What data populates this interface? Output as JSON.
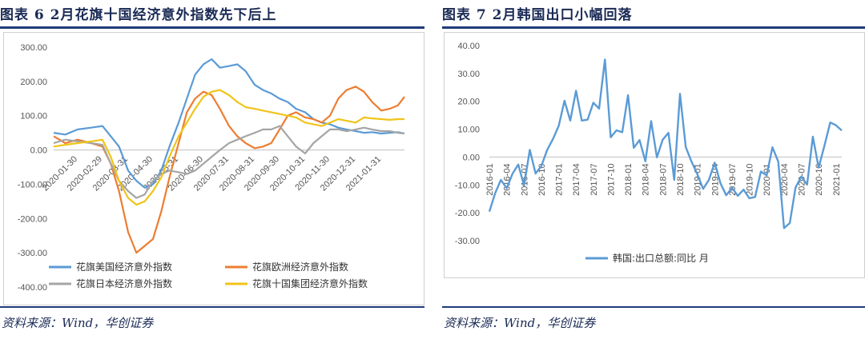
{
  "left": {
    "title": "图表 6   2月花旗十国经济意外指数先下后上",
    "source": "资料来源：Wind，华创证券",
    "chart_data": {
      "type": "line",
      "ylim": [
        -400,
        300
      ],
      "yticks": [
        300,
        200,
        100,
        0,
        -100,
        -200,
        -300,
        -400
      ],
      "ytick_labels": [
        "300.00",
        "200.00",
        "100.00",
        "0.00",
        "-100.00",
        "-200.00",
        "-300.00",
        "-400.00"
      ],
      "xlim": [
        "2020-01-01",
        "2021-02-28"
      ],
      "xtick_labels": [
        "2020-01-30",
        "2020-02-29",
        "2020-03-31",
        "2020-04-30",
        "2020-05-31",
        "2020-06-30",
        "2020-07-31",
        "2020-08-31",
        "2020-09-30",
        "2020-10-31",
        "2020-11-30",
        "2020-12-31",
        "2021-01-31"
      ],
      "legend_position": "bottom",
      "series": [
        {
          "name": "花旗美国经济意外指数",
          "color": "#5b9bd5",
          "x": [
            "2020-01-01",
            "2020-01-15",
            "2020-01-30",
            "2020-02-15",
            "2020-02-29",
            "2020-03-10",
            "2020-03-20",
            "2020-03-31",
            "2020-04-10",
            "2020-04-20",
            "2020-04-30",
            "2020-05-10",
            "2020-05-20",
            "2020-05-31",
            "2020-06-10",
            "2020-06-20",
            "2020-06-30",
            "2020-07-10",
            "2020-07-20",
            "2020-07-31",
            "2020-08-10",
            "2020-08-20",
            "2020-08-31",
            "2020-09-10",
            "2020-09-20",
            "2020-09-30",
            "2020-10-10",
            "2020-10-20",
            "2020-10-31",
            "2020-11-10",
            "2020-11-20",
            "2020-11-30",
            "2020-12-10",
            "2020-12-20",
            "2020-12-31",
            "2021-01-10",
            "2021-01-20",
            "2021-01-31",
            "2021-02-10",
            "2021-02-20",
            "2021-02-28"
          ],
          "y": [
            50,
            45,
            60,
            65,
            70,
            40,
            10,
            -60,
            -90,
            -110,
            -100,
            -60,
            10,
            80,
            150,
            220,
            250,
            265,
            240,
            245,
            250,
            230,
            190,
            175,
            165,
            150,
            140,
            120,
            110,
            90,
            80,
            75,
            65,
            60,
            55,
            50,
            52,
            48,
            50,
            52,
            48
          ]
        },
        {
          "name": "花旗欧洲经济意外指数",
          "color": "#ed7d31",
          "x": [
            "2020-01-01",
            "2020-01-15",
            "2020-01-30",
            "2020-02-15",
            "2020-02-29",
            "2020-03-10",
            "2020-03-20",
            "2020-03-31",
            "2020-04-10",
            "2020-04-20",
            "2020-04-30",
            "2020-05-10",
            "2020-05-20",
            "2020-05-31",
            "2020-06-10",
            "2020-06-20",
            "2020-06-30",
            "2020-07-10",
            "2020-07-20",
            "2020-07-31",
            "2020-08-10",
            "2020-08-20",
            "2020-08-31",
            "2020-09-10",
            "2020-09-20",
            "2020-09-30",
            "2020-10-10",
            "2020-10-20",
            "2020-10-31",
            "2020-11-10",
            "2020-11-20",
            "2020-11-30",
            "2020-12-10",
            "2020-12-20",
            "2020-12-31",
            "2021-01-10",
            "2021-01-20",
            "2021-01-31",
            "2021-02-10",
            "2021-02-20",
            "2021-02-28"
          ],
          "y": [
            40,
            20,
            30,
            20,
            10,
            -40,
            -120,
            -240,
            -300,
            -280,
            -260,
            -180,
            -80,
            20,
            110,
            150,
            170,
            160,
            120,
            70,
            40,
            20,
            5,
            10,
            20,
            60,
            100,
            110,
            95,
            90,
            80,
            100,
            150,
            175,
            185,
            170,
            140,
            115,
            120,
            130,
            155
          ]
        },
        {
          "name": "花旗日本经济意外指数",
          "color": "#a5a5a5",
          "x": [
            "2020-01-01",
            "2020-01-15",
            "2020-01-30",
            "2020-02-15",
            "2020-02-29",
            "2020-03-10",
            "2020-03-20",
            "2020-03-31",
            "2020-04-10",
            "2020-04-20",
            "2020-04-30",
            "2020-05-10",
            "2020-05-20",
            "2020-05-31",
            "2020-06-10",
            "2020-06-20",
            "2020-06-30",
            "2020-07-10",
            "2020-07-20",
            "2020-07-31",
            "2020-08-10",
            "2020-08-20",
            "2020-08-31",
            "2020-09-10",
            "2020-09-20",
            "2020-09-30",
            "2020-10-10",
            "2020-10-20",
            "2020-10-31",
            "2020-11-10",
            "2020-11-20",
            "2020-11-30",
            "2020-12-10",
            "2020-12-20",
            "2020-12-31",
            "2021-01-10",
            "2021-01-20",
            "2021-01-31",
            "2021-02-10",
            "2021-02-20",
            "2021-02-28"
          ],
          "y": [
            20,
            30,
            25,
            20,
            15,
            -40,
            -90,
            -120,
            -140,
            -130,
            -90,
            -70,
            -60,
            -65,
            -70,
            -60,
            -40,
            -20,
            0,
            20,
            30,
            40,
            50,
            60,
            60,
            70,
            40,
            10,
            -10,
            20,
            40,
            60,
            60,
            55,
            60,
            65,
            60,
            55,
            55,
            50,
            48
          ]
        },
        {
          "name": "花旗十国集团经济意外指数",
          "color": "#f0c419",
          "x": [
            "2020-01-01",
            "2020-01-15",
            "2020-01-30",
            "2020-02-15",
            "2020-02-29",
            "2020-03-10",
            "2020-03-20",
            "2020-03-31",
            "2020-04-10",
            "2020-04-20",
            "2020-04-30",
            "2020-05-10",
            "2020-05-20",
            "2020-05-31",
            "2020-06-10",
            "2020-06-20",
            "2020-06-30",
            "2020-07-10",
            "2020-07-20",
            "2020-07-31",
            "2020-08-10",
            "2020-08-20",
            "2020-08-31",
            "2020-09-10",
            "2020-09-20",
            "2020-09-30",
            "2020-10-10",
            "2020-10-20",
            "2020-10-31",
            "2020-11-10",
            "2020-11-20",
            "2020-11-30",
            "2020-12-10",
            "2020-12-20",
            "2020-12-31",
            "2021-01-10",
            "2021-01-20",
            "2021-01-31",
            "2021-02-10",
            "2021-02-20",
            "2021-02-28"
          ],
          "y": [
            10,
            15,
            20,
            25,
            30,
            -20,
            -90,
            -140,
            -160,
            -150,
            -120,
            -80,
            -20,
            40,
            80,
            120,
            155,
            170,
            175,
            160,
            140,
            125,
            120,
            115,
            110,
            105,
            100,
            95,
            80,
            75,
            70,
            80,
            90,
            85,
            80,
            95,
            92,
            90,
            88,
            90,
            90
          ]
        }
      ]
    }
  },
  "right": {
    "title": "图表 7   2月韩国出口小幅回落",
    "source": "资料来源：Wind，华创证券",
    "chart_data": {
      "type": "line",
      "ylim": [
        -30,
        40
      ],
      "yticks": [
        40,
        30,
        20,
        10,
        0,
        -10,
        -20,
        -30
      ],
      "ytick_labels": [
        "40.00",
        "30.00",
        "20.00",
        "10.00",
        "0.00",
        "-10.00",
        "-20.00",
        "-30.00"
      ],
      "xtick_labels": [
        "2016-01",
        "2016-04",
        "2016-07",
        "2016-10",
        "2017-01",
        "2017-04",
        "2017-07",
        "2017-10",
        "2018-01",
        "2018-04",
        "2018-07",
        "2018-10",
        "2019-01",
        "2019-04",
        "2019-07",
        "2019-10",
        "2020-01",
        "2020-04",
        "2020-07",
        "2020-10",
        "2021-01"
      ],
      "legend_position": "bottom",
      "series": [
        {
          "name": "韩国:出口总额:同比 月",
          "color": "#5b9bd5",
          "x": [
            "2016-01",
            "2016-02",
            "2016-03",
            "2016-04",
            "2016-05",
            "2016-06",
            "2016-07",
            "2016-08",
            "2016-09",
            "2016-10",
            "2016-11",
            "2016-12",
            "2017-01",
            "2017-02",
            "2017-03",
            "2017-04",
            "2017-05",
            "2017-06",
            "2017-07",
            "2017-08",
            "2017-09",
            "2017-10",
            "2017-11",
            "2017-12",
            "2018-01",
            "2018-02",
            "2018-03",
            "2018-04",
            "2018-05",
            "2018-06",
            "2018-07",
            "2018-08",
            "2018-09",
            "2018-10",
            "2018-11",
            "2018-12",
            "2019-01",
            "2019-02",
            "2019-03",
            "2019-04",
            "2019-05",
            "2019-06",
            "2019-07",
            "2019-08",
            "2019-09",
            "2019-10",
            "2019-11",
            "2019-12",
            "2020-01",
            "2020-02",
            "2020-03",
            "2020-04",
            "2020-05",
            "2020-06",
            "2020-07",
            "2020-08",
            "2020-09",
            "2020-10",
            "2020-11",
            "2020-12",
            "2021-01",
            "2021-02"
          ],
          "y": [
            -19.6,
            -13,
            -8.2,
            -11.2,
            -6,
            -2.7,
            -10.2,
            2.6,
            -5.9,
            -3.2,
            2.5,
            6.4,
            11.2,
            20.2,
            13.1,
            23.8,
            13.1,
            13.4,
            19.5,
            17.4,
            35,
            7.1,
            9.6,
            8.9,
            22.2,
            3.3,
            6.1,
            -1.5,
            12.9,
            -0.1,
            6.2,
            8.7,
            -8.2,
            22.7,
            3.6,
            -1.7,
            -6.2,
            -11.4,
            -8.2,
            -2,
            -9.4,
            -13.7,
            -11,
            -13.9,
            -11.7,
            -14.8,
            -14.3,
            -5.2,
            -6.6,
            3.5,
            -1.6,
            -25.5,
            -23.7,
            -10.9,
            -7,
            -9.9,
            7.3,
            -3.8,
            4.1,
            12.4,
            11.4,
            9.5
          ]
        }
      ]
    }
  }
}
